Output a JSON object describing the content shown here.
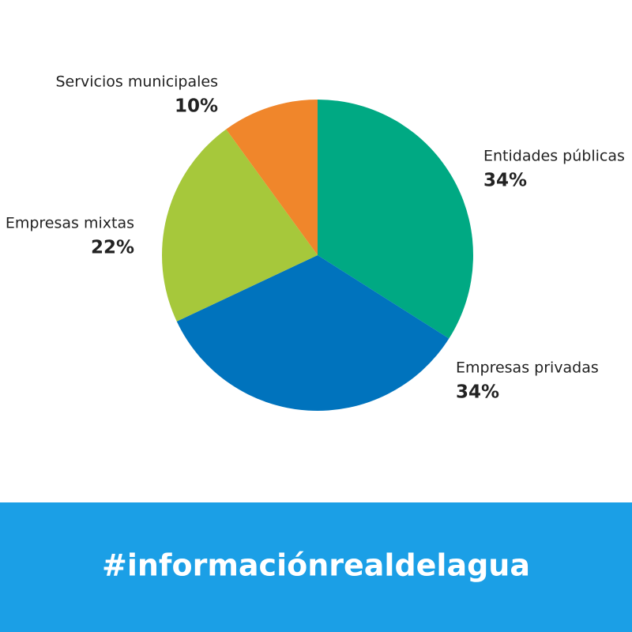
{
  "chart_data": {
    "type": "pie",
    "categories": [
      "Entidades públicas",
      "Empresas privadas",
      "Empresas mixtas",
      "Servicios municipales"
    ],
    "values": [
      34,
      34,
      22,
      10
    ],
    "value_labels": [
      "34%",
      "34%",
      "22%",
      "10%"
    ],
    "colors": [
      "#00a983",
      "#0073bd",
      "#a6c83b",
      "#f0862b"
    ]
  },
  "banner": {
    "text": "#informaciónrealdelagua"
  }
}
